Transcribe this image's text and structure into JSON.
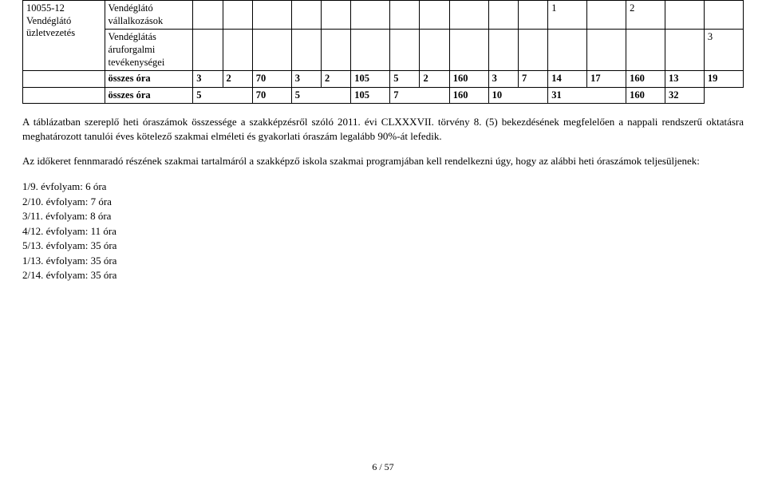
{
  "table": {
    "rows": [
      {
        "left1_lines": [
          "10055-12",
          "Vendéglátó",
          "üzletvezetés"
        ],
        "left2a_lines": [
          "Vendéglátó",
          "vállalkozások"
        ],
        "left2b_lines": [
          "Vendéglátás",
          "áruforgalmi",
          "tevékenységei"
        ],
        "cells_a": [
          "",
          "",
          "",
          "",
          "",
          "",
          "",
          "",
          "",
          "",
          "",
          "1",
          "",
          "2",
          "",
          ""
        ],
        "cells_b": [
          "",
          "",
          "",
          "",
          "",
          "",
          "",
          "",
          "",
          "",
          "",
          "",
          "",
          "",
          "",
          "3"
        ],
        "row2_label": "összes óra",
        "row2_cells": [
          "3",
          "2",
          "70",
          "3",
          "2",
          "105",
          "5",
          "2",
          "160",
          "3",
          "7",
          "14",
          "17",
          "160",
          "13",
          "19"
        ],
        "row3_label": "összes óra",
        "row3_cells": [
          "5",
          "70",
          "5",
          "105",
          "7",
          "160",
          "10",
          "31",
          "160",
          "32"
        ]
      }
    ],
    "col_classes": [
      "n",
      "n",
      "nw",
      "n",
      "n",
      "nw",
      "n",
      "n",
      "nw",
      "n",
      "n",
      "nw",
      "nw",
      "nw",
      "nw",
      "nw"
    ]
  },
  "paragraphs": {
    "p1": "A táblázatban szereplő heti óraszámok összessége a szakképzésről szóló 2011. évi CLXXXVII. törvény 8. (5) bekezdésének megfelelően a nappali rendszerű oktatásra meghatározott tanulói éves kötelező szakmai elméleti és gyakorlati óraszám legalább 90%-át lefedik.",
    "p2": "Az időkeret fennmaradó részének szakmai tartalmáról a szakképző iskola szakmai programjában kell rendelkezni úgy, hogy az alábbi heti óraszámok teljesüljenek:"
  },
  "list": [
    "1/9. évfolyam: 6 óra",
    "2/10. évfolyam: 7 óra",
    "3/11. évfolyam: 8 óra",
    "4/12. évfolyam: 11 óra",
    "5/13. évfolyam: 35 óra",
    "1/13. évfolyam: 35 óra",
    "2/14. évfolyam: 35 óra"
  ],
  "pagenum": "6 / 57"
}
